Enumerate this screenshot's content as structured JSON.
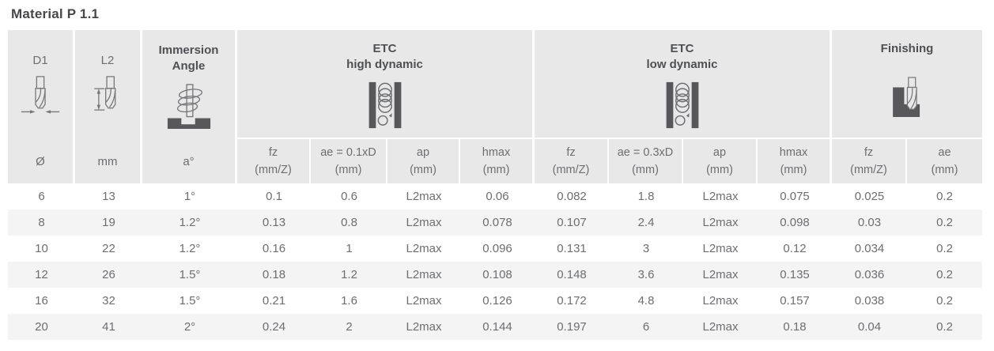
{
  "title": "Material P 1.1",
  "colors": {
    "header_bg": "#e8e8e9",
    "stripe_bg": "#f4f4f5",
    "icon_dark": "#58585a",
    "icon_stroke": "#77787a",
    "heading_text": "#4f5052",
    "body_text": "#6d6e70"
  },
  "table": {
    "simple_columns": [
      {
        "label": "D1",
        "unit": "Ø",
        "icon": "endmill-diameter-icon"
      },
      {
        "label": "L2",
        "unit": "mm",
        "icon": "endmill-length-icon"
      },
      {
        "label": "Immersion\nAngle",
        "unit": "a°",
        "icon": "helical-immersion-icon"
      }
    ],
    "groups": [
      {
        "label": "ETC\nhigh dynamic",
        "icon": "slot-coil-icon"
      },
      {
        "label": "ETC\nlow dynamic",
        "icon": "slot-coil-icon"
      },
      {
        "label": "Finishing",
        "icon": "side-finishing-icon"
      }
    ],
    "sub_headers": [
      {
        "name": "fz",
        "unit": "(mm/Z)"
      },
      {
        "name": "ae = 0.1xD",
        "unit": "(mm)"
      },
      {
        "name": "ap",
        "unit": "(mm)"
      },
      {
        "name": "hmax",
        "unit": "(mm)"
      },
      {
        "name": "fz",
        "unit": "(mm/Z)"
      },
      {
        "name": "ae = 0.3xD",
        "unit": "(mm)"
      },
      {
        "name": "ap",
        "unit": "(mm)"
      },
      {
        "name": "hmax",
        "unit": "(mm)"
      },
      {
        "name": "fz",
        "unit": "(mm/Z)"
      },
      {
        "name": "ae",
        "unit": "(mm)"
      }
    ],
    "rows": [
      [
        "6",
        "13",
        "1°",
        "0.1",
        "0.6",
        "L2max",
        "0.06",
        "0.082",
        "1.8",
        "L2max",
        "0.075",
        "0.025",
        "0.2"
      ],
      [
        "8",
        "19",
        "1.2°",
        "0.13",
        "0.8",
        "L2max",
        "0.078",
        "0.107",
        "2.4",
        "L2max",
        "0.098",
        "0.03",
        "0.2"
      ],
      [
        "10",
        "22",
        "1.2°",
        "0.16",
        "1",
        "L2max",
        "0.096",
        "0.131",
        "3",
        "L2max",
        "0.12",
        "0.034",
        "0.2"
      ],
      [
        "12",
        "26",
        "1.5°",
        "0.18",
        "1.2",
        "L2max",
        "0.108",
        "0.148",
        "3.6",
        "L2max",
        "0.135",
        "0.036",
        "0.2"
      ],
      [
        "16",
        "32",
        "1.5°",
        "0.21",
        "1.6",
        "L2max",
        "0.126",
        "0.172",
        "4.8",
        "L2max",
        "0.157",
        "0.038",
        "0.2"
      ],
      [
        "20",
        "41",
        "2°",
        "0.24",
        "2",
        "L2max",
        "0.144",
        "0.197",
        "6",
        "L2max",
        "0.18",
        "0.04",
        "0.2"
      ]
    ]
  }
}
